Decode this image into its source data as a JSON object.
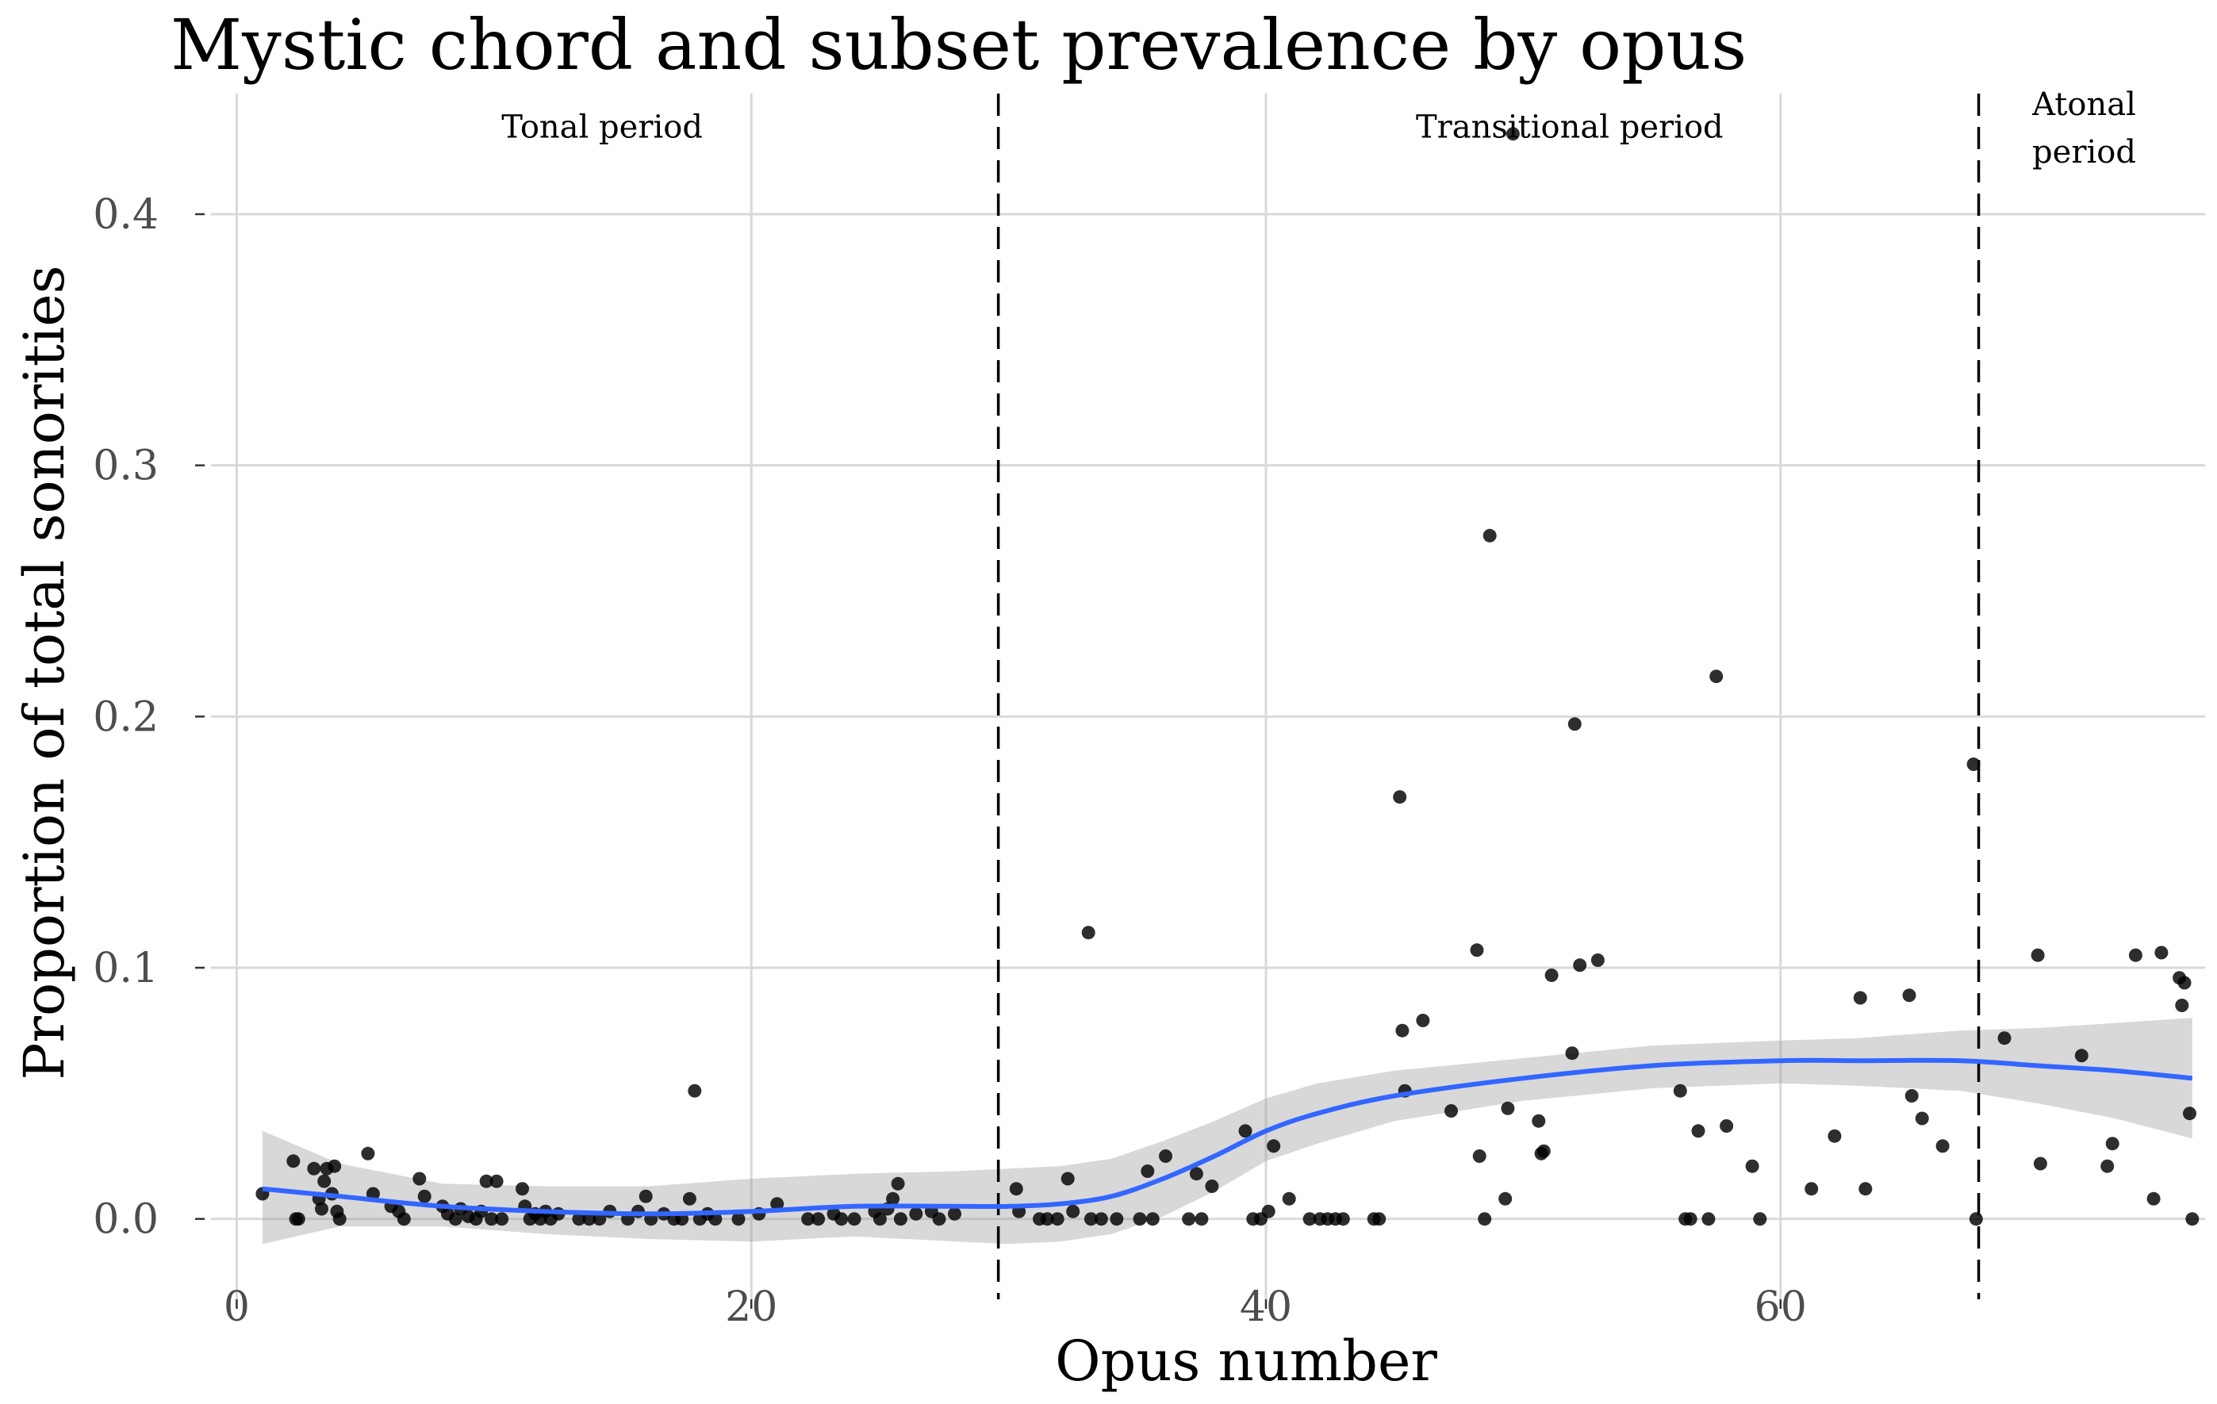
{
  "chart_data": {
    "type": "scatter",
    "title": "Mystic chord and subset prevalence by opus",
    "xlabel": "Opus number",
    "ylabel": "Proportion of total sonorities",
    "xlim": [
      -1,
      76.5
    ],
    "ylim": [
      -0.032,
      0.448
    ],
    "x_ticks": [
      0,
      20,
      40,
      60
    ],
    "x_tick_labels": [
      "0",
      "20",
      "40",
      "60"
    ],
    "y_ticks": [
      0.0,
      0.1,
      0.2,
      0.3,
      0.4
    ],
    "y_tick_labels": [
      "0.0",
      "0.1",
      "0.2",
      "0.3",
      "0.4"
    ],
    "grid": true,
    "period_boundaries": [
      29.6,
      67.7
    ],
    "annotations": [
      {
        "label": "Tonal period",
        "x": 14.2,
        "y": 0.4305
      },
      {
        "label": "Transitional period",
        "x": 51.8,
        "y": 0.4305
      },
      {
        "label": "Atonal",
        "x": 71.8,
        "y": 0.4395
      },
      {
        "label": "period",
        "x": 71.8,
        "y": 0.4205
      }
    ],
    "colors": {
      "points": "#000000",
      "smooth_line": "#3366ff",
      "confidence_band": "#999999"
    },
    "points": [
      [
        1,
        0.01
      ],
      [
        2.2,
        0.023
      ],
      [
        2.3,
        0
      ],
      [
        2.4,
        0
      ],
      [
        3,
        0.02
      ],
      [
        3.2,
        0.008
      ],
      [
        3.3,
        0.004
      ],
      [
        3.4,
        0.015
      ],
      [
        3.5,
        0.02
      ],
      [
        3.7,
        0.01
      ],
      [
        3.8,
        0.021
      ],
      [
        3.9,
        0.003
      ],
      [
        4,
        0
      ],
      [
        5.1,
        0.026
      ],
      [
        5.3,
        0.01
      ],
      [
        6,
        0.005
      ],
      [
        6.3,
        0.003
      ],
      [
        6.5,
        0
      ],
      [
        7.1,
        0.016
      ],
      [
        7.3,
        0.009
      ],
      [
        8,
        0.005
      ],
      [
        8.2,
        0.002
      ],
      [
        8.5,
        0
      ],
      [
        8.7,
        0.004
      ],
      [
        9,
        0.001
      ],
      [
        9.3,
        0
      ],
      [
        9.5,
        0.003
      ],
      [
        9.7,
        0.015
      ],
      [
        9.9,
        0
      ],
      [
        10.1,
        0.015
      ],
      [
        10.3,
        0
      ],
      [
        11.1,
        0.012
      ],
      [
        11.2,
        0.005
      ],
      [
        11.4,
        0
      ],
      [
        11.6,
        0.002
      ],
      [
        11.8,
        0
      ],
      [
        12,
        0.003
      ],
      [
        12.2,
        0
      ],
      [
        12.5,
        0.002
      ],
      [
        13.3,
        0
      ],
      [
        13.7,
        0
      ],
      [
        14.1,
        0
      ],
      [
        14.5,
        0.003
      ],
      [
        15.2,
        0
      ],
      [
        15.6,
        0.003
      ],
      [
        15.9,
        0.009
      ],
      [
        16.1,
        0
      ],
      [
        16.6,
        0.002
      ],
      [
        17,
        0
      ],
      [
        17.3,
        0
      ],
      [
        17.6,
        0.008
      ],
      [
        17.8,
        0.051
      ],
      [
        18,
        0
      ],
      [
        18.3,
        0.002
      ],
      [
        18.6,
        0
      ],
      [
        19.5,
        0
      ],
      [
        20.3,
        0.002
      ],
      [
        21,
        0.006
      ],
      [
        22.2,
        0
      ],
      [
        22.6,
        0
      ],
      [
        23.2,
        0.002
      ],
      [
        23.5,
        0
      ],
      [
        24,
        0
      ],
      [
        24.8,
        0.003
      ],
      [
        25,
        0
      ],
      [
        25.3,
        0.004
      ],
      [
        25.5,
        0.008
      ],
      [
        25.7,
        0.014
      ],
      [
        25.8,
        0
      ],
      [
        26.4,
        0.002
      ],
      [
        27,
        0.003
      ],
      [
        27.3,
        0
      ],
      [
        27.9,
        0.002
      ],
      [
        30.3,
        0.012
      ],
      [
        30.4,
        0.003
      ],
      [
        31.2,
        0
      ],
      [
        31.5,
        0
      ],
      [
        31.9,
        0
      ],
      [
        32.3,
        0.016
      ],
      [
        32.5,
        0.003
      ],
      [
        33.1,
        0.114
      ],
      [
        33.2,
        0
      ],
      [
        33.6,
        0
      ],
      [
        34.2,
        0
      ],
      [
        35.1,
        0
      ],
      [
        35.4,
        0.019
      ],
      [
        35.6,
        0
      ],
      [
        36.1,
        0.025
      ],
      [
        37,
        0
      ],
      [
        37.3,
        0.018
      ],
      [
        37.5,
        0
      ],
      [
        37.9,
        0.013
      ],
      [
        39.2,
        0.035
      ],
      [
        39.5,
        0
      ],
      [
        39.8,
        0
      ],
      [
        40.1,
        0.003
      ],
      [
        40.3,
        0.029
      ],
      [
        40.9,
        0.008
      ],
      [
        41.7,
        0
      ],
      [
        42.1,
        0
      ],
      [
        42.4,
        0
      ],
      [
        42.7,
        0
      ],
      [
        43,
        0
      ],
      [
        44.2,
        0
      ],
      [
        44.4,
        0
      ],
      [
        45.2,
        0.168
      ],
      [
        45.3,
        0.075
      ],
      [
        45.4,
        0.051
      ],
      [
        46.1,
        0.079
      ],
      [
        47.2,
        0.043
      ],
      [
        48.2,
        0.107
      ],
      [
        48.3,
        0.025
      ],
      [
        48.5,
        0
      ],
      [
        48.7,
        0.272
      ],
      [
        49.3,
        0.008
      ],
      [
        49.4,
        0.044
      ],
      [
        49.6,
        0.432
      ],
      [
        50.6,
        0.039
      ],
      [
        50.7,
        0.026
      ],
      [
        50.8,
        0.027
      ],
      [
        51.1,
        0.097
      ],
      [
        51.9,
        0.066
      ],
      [
        52,
        0.197
      ],
      [
        52.2,
        0.101
      ],
      [
        52.9,
        0.103
      ],
      [
        56.1,
        0.051
      ],
      [
        56.3,
        0
      ],
      [
        56.5,
        0
      ],
      [
        56.8,
        0.035
      ],
      [
        57.2,
        0
      ],
      [
        57.5,
        0.216
      ],
      [
        57.9,
        0.037
      ],
      [
        58.9,
        0.021
      ],
      [
        59.2,
        0
      ],
      [
        61.2,
        0.012
      ],
      [
        62.1,
        0.033
      ],
      [
        63.1,
        0.088
      ],
      [
        63.3,
        0.012
      ],
      [
        65,
        0.089
      ],
      [
        65.1,
        0.049
      ],
      [
        65.5,
        0.04
      ],
      [
        66.3,
        0.029
      ],
      [
        67.5,
        0.181
      ],
      [
        67.6,
        0
      ],
      [
        68.7,
        0.072
      ],
      [
        70,
        0.105
      ],
      [
        70.1,
        0.022
      ],
      [
        71.7,
        0.065
      ],
      [
        72.7,
        0.021
      ],
      [
        72.9,
        0.03
      ],
      [
        73.8,
        0.105
      ],
      [
        74.5,
        0.008
      ],
      [
        74.8,
        0.106
      ],
      [
        75.5,
        0.096
      ],
      [
        75.6,
        0.085
      ],
      [
        75.7,
        0.094
      ],
      [
        75.9,
        0.042
      ],
      [
        76,
        0
      ]
    ],
    "smooth_fit": {
      "x": [
        1,
        4,
        8,
        12,
        16,
        20,
        24,
        28,
        30,
        32,
        34,
        36,
        38,
        40,
        42,
        45,
        50,
        55,
        60,
        63,
        67,
        70,
        73,
        76
      ],
      "y": [
        0.012,
        0.009,
        0.005,
        0.003,
        0.002,
        0.003,
        0.005,
        0.005,
        0.005,
        0.006,
        0.009,
        0.016,
        0.025,
        0.035,
        0.042,
        0.049,
        0.056,
        0.061,
        0.063,
        0.063,
        0.063,
        0.061,
        0.059,
        0.056
      ],
      "lower": [
        -0.01,
        -0.003,
        -0.003,
        -0.006,
        -0.008,
        -0.009,
        -0.007,
        -0.009,
        -0.01,
        -0.009,
        -0.006,
        0.001,
        0.011,
        0.023,
        0.03,
        0.039,
        0.047,
        0.052,
        0.054,
        0.053,
        0.051,
        0.046,
        0.04,
        0.032
      ],
      "upper": [
        0.035,
        0.022,
        0.014,
        0.013,
        0.013,
        0.016,
        0.018,
        0.019,
        0.02,
        0.021,
        0.024,
        0.031,
        0.039,
        0.048,
        0.054,
        0.059,
        0.064,
        0.069,
        0.071,
        0.072,
        0.075,
        0.076,
        0.078,
        0.08
      ]
    }
  }
}
